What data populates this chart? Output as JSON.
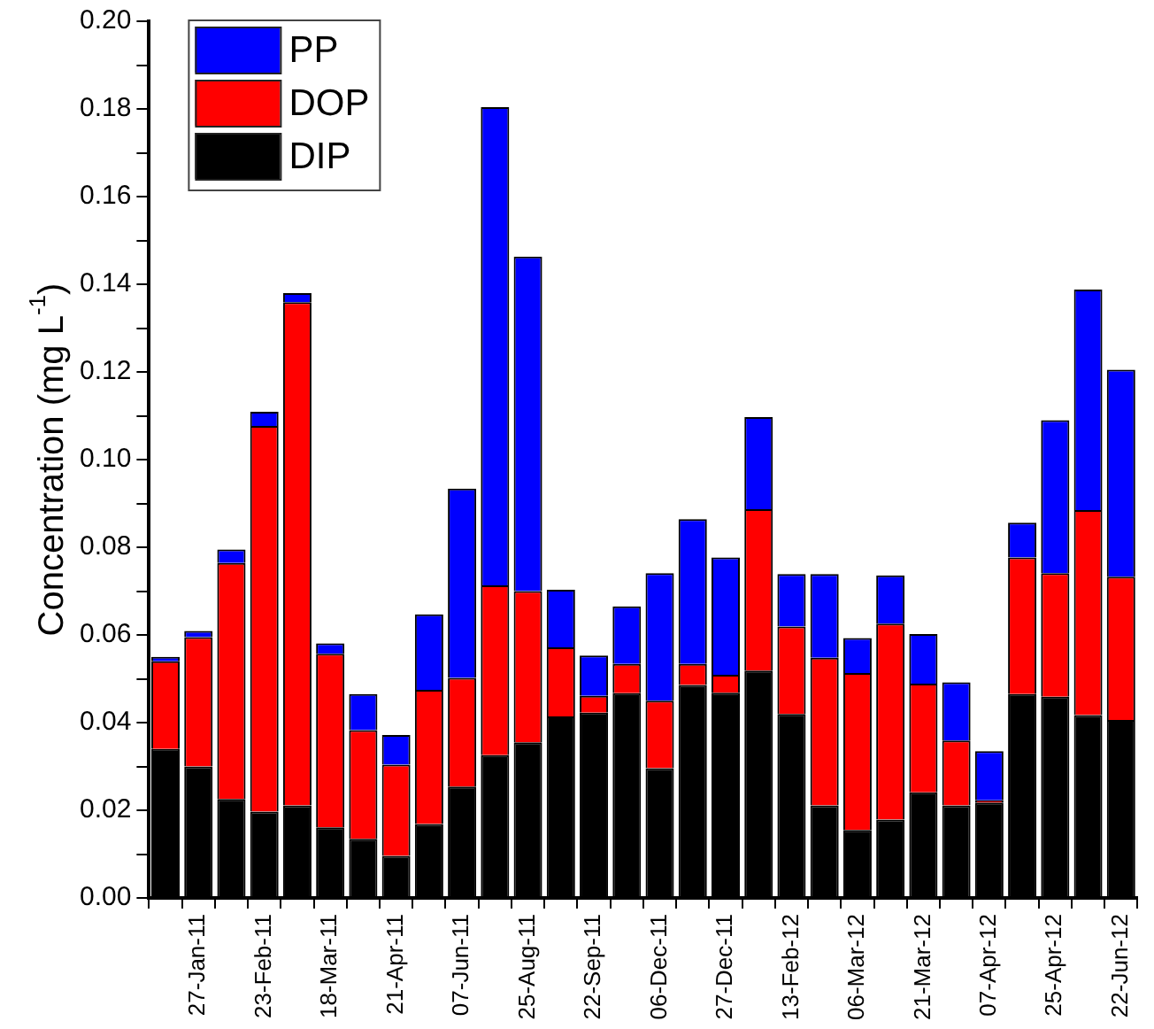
{
  "chart_data": {
    "type": "bar",
    "stacked": true,
    "ylabel": "Concentration (mg L$^{-1}$)",
    "categories": [
      null,
      "27-Jan-11",
      null,
      "23-Feb-11",
      null,
      "18-Mar-11",
      null,
      "21-Apr-11",
      null,
      "07-Jun-11",
      null,
      "25-Aug-11",
      null,
      "22-Sep-11",
      null,
      "06-Dec-11",
      null,
      "27-Dec-11",
      null,
      "13-Feb-12",
      null,
      "06-Mar-12",
      null,
      "21-Mar-12",
      null,
      "07-Apr-12",
      null,
      "25-Apr-12",
      null,
      "22-Jun-12"
    ],
    "series": [
      {
        "name": "DIP",
        "color": "#000000",
        "values": [
          0.034,
          0.03,
          0.0226,
          0.0197,
          0.0211,
          0.0161,
          0.0135,
          0.0096,
          0.0169,
          0.0254,
          0.0326,
          0.0355,
          0.0414,
          0.0423,
          0.0467,
          0.0296,
          0.0486,
          0.0468,
          0.0519,
          0.042,
          0.0211,
          0.0155,
          0.0179,
          0.0241,
          0.0211,
          0.0218,
          0.0465,
          0.0459,
          0.0417,
          0.0406
        ]
      },
      {
        "name": "DOP",
        "color": "#ff0000",
        "values": [
          0.02,
          0.0295,
          0.0538,
          0.088,
          0.1148,
          0.0396,
          0.0248,
          0.0208,
          0.0306,
          0.0248,
          0.0387,
          0.0345,
          0.0158,
          0.0038,
          0.0067,
          0.0154,
          0.0048,
          0.0041,
          0.0368,
          0.0199,
          0.0337,
          0.0358,
          0.0447,
          0.0248,
          0.0148,
          0.0005,
          0.0312,
          0.0282,
          0.0468,
          0.0327
        ]
      },
      {
        "name": "PP",
        "color": "#0000ff",
        "values": [
          0.001,
          0.0014,
          0.0031,
          0.0032,
          0.0021,
          0.0024,
          0.0082,
          0.0068,
          0.0172,
          0.0432,
          0.1091,
          0.0763,
          0.0131,
          0.0092,
          0.0131,
          0.0291,
          0.033,
          0.0268,
          0.021,
          0.012,
          0.0191,
          0.008,
          0.011,
          0.0113,
          0.0133,
          0.0112,
          0.0079,
          0.0349,
          0.0503,
          0.0472
        ]
      }
    ],
    "ylim": [
      0,
      0.2
    ],
    "yticks": [
      {
        "value": 0,
        "label": "0.00"
      },
      {
        "value": 0.01,
        "label": null
      },
      {
        "value": 0.02,
        "label": "0.02"
      },
      {
        "value": 0.03,
        "label": null
      },
      {
        "value": 0.04,
        "label": "0.04"
      },
      {
        "value": 0.05,
        "label": null
      },
      {
        "value": 0.06,
        "label": "0.06"
      },
      {
        "value": 0.07,
        "label": null
      },
      {
        "value": 0.08,
        "label": "0.08"
      },
      {
        "value": 0.09,
        "label": null
      },
      {
        "value": 0.1,
        "label": "0.10"
      },
      {
        "value": 0.11,
        "label": null
      },
      {
        "value": 0.12,
        "label": "0.12"
      },
      {
        "value": 0.13,
        "label": null
      },
      {
        "value": 0.14,
        "label": "0.14"
      },
      {
        "value": 0.15,
        "label": null
      },
      {
        "value": 0.16,
        "label": "0.16"
      },
      {
        "value": 0.17,
        "label": null
      },
      {
        "value": 0.18,
        "label": "0.18"
      },
      {
        "value": 0.19,
        "label": null
      },
      {
        "value": 0.2,
        "label": "0.20"
      }
    ],
    "grid": false,
    "legend": "top left"
  }
}
